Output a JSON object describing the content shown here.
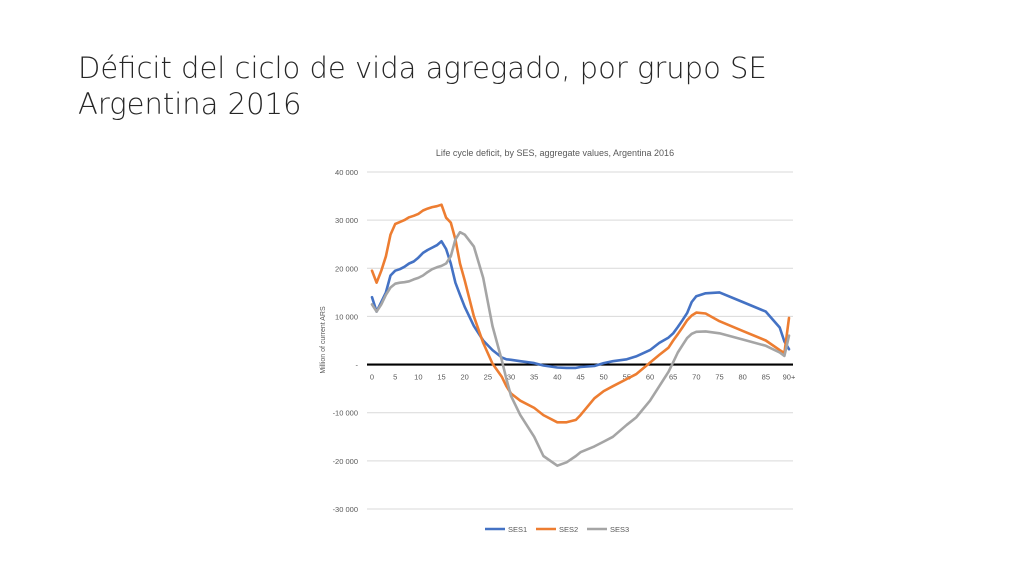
{
  "slide": {
    "title_line1": "Déficit del ciclo de vida agregado, por grupo SE",
    "title_line2": "Argentina 2016"
  },
  "chart_data": {
    "type": "line",
    "title": "Life cycle deficit, by SES, aggregate values, Argentina 2016",
    "xlabel": "",
    "ylabel": "Million of current ARS",
    "ylim": [
      -30000,
      40000
    ],
    "yticks": [
      40000,
      30000,
      20000,
      10000,
      0,
      -10000,
      -20000,
      -30000
    ],
    "ytick_labels": [
      "40 000",
      "30 000",
      "20 000",
      "10 000",
      "-",
      "-10 000",
      "-20 000",
      "-30 000"
    ],
    "xlim": [
      0,
      90
    ],
    "xtick_labels": [
      "0",
      "5",
      "10",
      "15",
      "20",
      "25",
      "30",
      "35",
      "40",
      "45",
      "50",
      "55",
      "60",
      "65",
      "70",
      "75",
      "80",
      "85",
      "90+"
    ],
    "grid": true,
    "legend_position": "bottom",
    "zero_line_color": "#000000",
    "series": [
      {
        "name": "SES1",
        "color": "#4472C4",
        "x": [
          0,
          1,
          2,
          3,
          4,
          5,
          6,
          7,
          8,
          9,
          10,
          11,
          12,
          13,
          14,
          15,
          16,
          17,
          18,
          19,
          20,
          22,
          24,
          26,
          28,
          29,
          30,
          32,
          35,
          37,
          40,
          42,
          44,
          45,
          48,
          50,
          52,
          55,
          57,
          60,
          62,
          64,
          65,
          66,
          67,
          68,
          69,
          70,
          72,
          75,
          80,
          85,
          88,
          89,
          90
        ],
        "y": [
          14000,
          11000,
          13000,
          15000,
          18500,
          19500,
          19800,
          20300,
          21000,
          21400,
          22200,
          23200,
          23800,
          24300,
          24800,
          25600,
          24000,
          21000,
          17000,
          14500,
          12000,
          8000,
          5000,
          3000,
          1500,
          1100,
          1000,
          700,
          300,
          -200,
          -600,
          -700,
          -700,
          -500,
          -300,
          300,
          700,
          1100,
          1700,
          3000,
          4500,
          5600,
          6500,
          7800,
          9200,
          10700,
          13000,
          14200,
          14800,
          15000,
          13000,
          11000,
          7700,
          4800,
          3200
        ]
      },
      {
        "name": "SES2",
        "color": "#ED7D31",
        "x": [
          0,
          1,
          2,
          3,
          4,
          5,
          6,
          7,
          8,
          9,
          10,
          11,
          12,
          13,
          14,
          15,
          16,
          17,
          18,
          19,
          20,
          22,
          24,
          26,
          28,
          29,
          30,
          32,
          35,
          37,
          40,
          42,
          44,
          45,
          48,
          50,
          52,
          55,
          57,
          60,
          62,
          64,
          65,
          66,
          67,
          68,
          69,
          70,
          72,
          75,
          80,
          85,
          88,
          89,
          90
        ],
        "y": [
          19500,
          17000,
          19500,
          22500,
          27000,
          29200,
          29600,
          30000,
          30600,
          30900,
          31300,
          32000,
          32400,
          32700,
          32900,
          33200,
          30500,
          29500,
          26000,
          21000,
          17500,
          10000,
          4500,
          200,
          -2500,
          -4500,
          -6000,
          -7500,
          -9000,
          -10500,
          -12000,
          -12000,
          -11500,
          -10500,
          -7000,
          -5500,
          -4500,
          -3000,
          -2000,
          400,
          2000,
          3500,
          5000,
          6300,
          7700,
          9200,
          10200,
          10800,
          10600,
          9000,
          7000,
          5000,
          3000,
          2400,
          9700
        ]
      },
      {
        "name": "SES3",
        "color": "#A5A5A5",
        "x": [
          0,
          1,
          2,
          3,
          4,
          5,
          6,
          7,
          8,
          9,
          10,
          11,
          12,
          13,
          14,
          15,
          16,
          17,
          18,
          19,
          20,
          22,
          24,
          26,
          28,
          29,
          30,
          32,
          35,
          37,
          40,
          42,
          44,
          45,
          48,
          50,
          52,
          55,
          57,
          60,
          62,
          64,
          65,
          66,
          67,
          68,
          69,
          70,
          72,
          75,
          80,
          85,
          88,
          89,
          90
        ],
        "y": [
          12500,
          11000,
          12500,
          14500,
          16000,
          16800,
          17000,
          17100,
          17300,
          17700,
          18000,
          18500,
          19200,
          19800,
          20200,
          20500,
          21000,
          22500,
          26000,
          27500,
          27000,
          24500,
          18000,
          8000,
          1000,
          -3000,
          -6500,
          -10500,
          -15000,
          -19000,
          -21000,
          -20300,
          -19000,
          -18200,
          -17000,
          -16000,
          -15000,
          -12500,
          -11000,
          -7500,
          -4500,
          -1500,
          500,
          2500,
          4000,
          5500,
          6400,
          6800,
          6900,
          6500,
          5200,
          3900,
          2500,
          1800,
          6000
        ]
      }
    ]
  }
}
